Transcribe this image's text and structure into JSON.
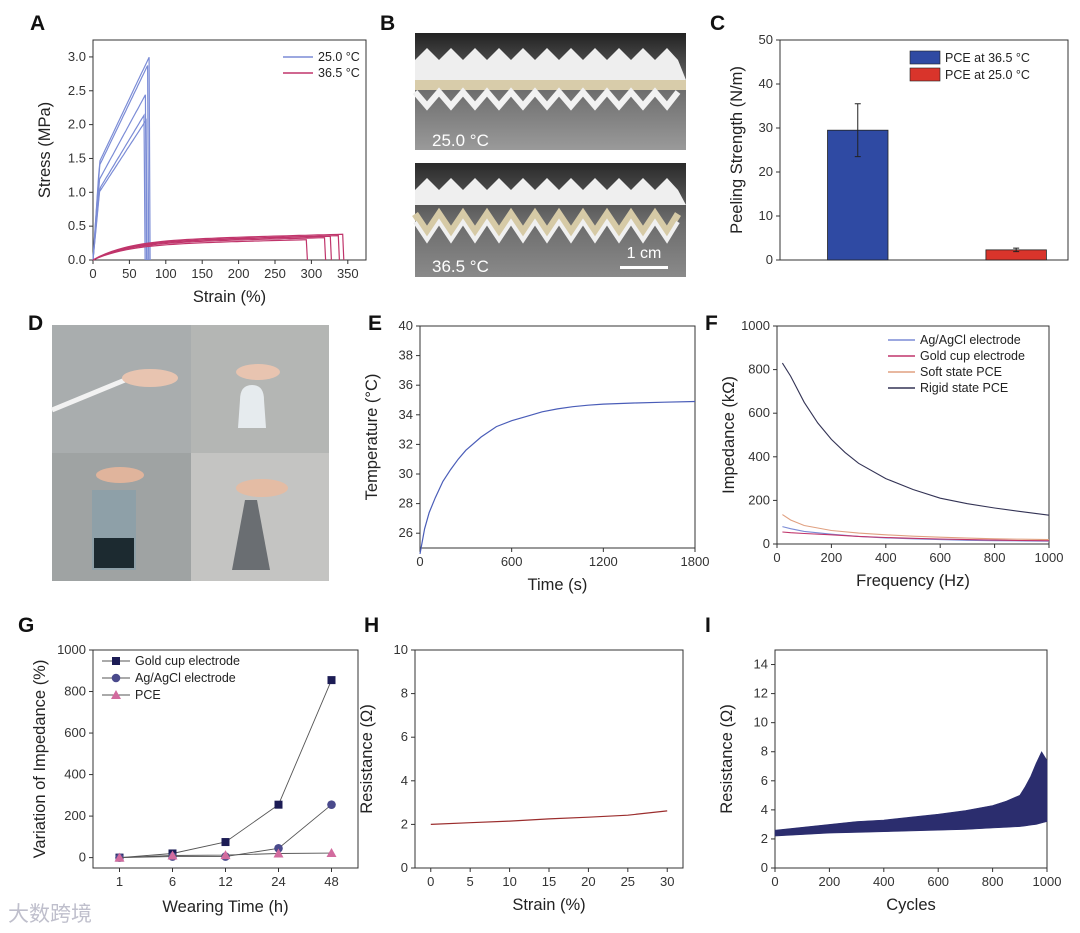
{
  "panels": {
    "A": {
      "letter": "A"
    },
    "B": {
      "letter": "B"
    },
    "C": {
      "letter": "C"
    },
    "D": {
      "letter": "D"
    },
    "E": {
      "letter": "E"
    },
    "F": {
      "letter": "F"
    },
    "G": {
      "letter": "G"
    },
    "H": {
      "letter": "H"
    },
    "I": {
      "letter": "I"
    }
  },
  "photo_B": {
    "top_label": "25.0 °C",
    "bottom_label": "36.5 °C",
    "scale_label": "1 cm"
  },
  "watermark": "大数跨境",
  "colors": {
    "blue": "#7b8cd6",
    "red": "#c0356b",
    "navy": "#2b2d6e",
    "pce_blue": "#2f4aa3",
    "pce_red": "#d9342b"
  },
  "chart_data": [
    {
      "id": "A",
      "type": "line",
      "xlabel": "Strain (%)",
      "ylabel": "Stress (MPa)",
      "xlim": [
        0,
        375
      ],
      "ylim": [
        0,
        3.25
      ],
      "xticks": [
        0,
        50,
        100,
        150,
        200,
        250,
        300,
        350
      ],
      "yticks": [
        0.0,
        0.5,
        1.0,
        1.5,
        2.0,
        2.5,
        3.0
      ],
      "ytick_labels": [
        "0.0",
        "0.5",
        "1.0",
        "1.5",
        "2.0",
        "2.5",
        "3.0"
      ],
      "series": [
        {
          "name": "25.0 °C",
          "color": "#7b8cd6",
          "curves": [
            {
              "peak": 2.97,
              "break": 77
            },
            {
              "peak": 2.85,
              "break": 75
            },
            {
              "peak": 2.42,
              "break": 72
            },
            {
              "peak": 2.12,
              "break": 70
            },
            {
              "peak": 2.05,
              "break": 73
            }
          ]
        },
        {
          "name": "36.5 °C",
          "color": "#c0356b",
          "curves": [
            {
              "peak": 0.3,
              "break": 293
            },
            {
              "peak": 0.33,
              "break": 318
            },
            {
              "peak": 0.35,
              "break": 326
            },
            {
              "peak": 0.38,
              "break": 343
            },
            {
              "peak": 0.36,
              "break": 337
            }
          ]
        }
      ]
    },
    {
      "id": "C",
      "type": "bar",
      "ylabel": "Peeling Strength (N/m)",
      "ylim": [
        0,
        50
      ],
      "yticks": [
        0,
        10,
        20,
        30,
        40,
        50
      ],
      "series": [
        {
          "name": "PCE at 36.5 °C",
          "value": 29.5,
          "error": 6.0,
          "color": "#2f4aa3"
        },
        {
          "name": "PCE at 25.0 °C",
          "value": 2.3,
          "error": 0.4,
          "color": "#d9342b"
        }
      ]
    },
    {
      "id": "E",
      "type": "line",
      "xlabel": "Time (s)",
      "ylabel": "Temperature (°C)",
      "xlim": [
        0,
        1800
      ],
      "ylim": [
        25,
        40
      ],
      "xticks": [
        0,
        600,
        1200,
        1800
      ],
      "yticks": [
        26,
        28,
        30,
        32,
        34,
        36,
        38,
        40
      ],
      "series": [
        {
          "name": "temperature",
          "color": "#4a5db8",
          "x": [
            0,
            30,
            60,
            100,
            150,
            200,
            250,
            300,
            400,
            500,
            600,
            700,
            800,
            900,
            1000,
            1100,
            1200,
            1400,
            1600,
            1800
          ],
          "y": [
            24.6,
            26.3,
            27.4,
            28.4,
            29.5,
            30.3,
            31.0,
            31.6,
            32.5,
            33.2,
            33.6,
            33.9,
            34.2,
            34.4,
            34.55,
            34.65,
            34.72,
            34.8,
            34.85,
            34.9
          ]
        }
      ]
    },
    {
      "id": "F",
      "type": "line",
      "xlabel": "Frequency (Hz)",
      "ylabel": "Impedance (kΩ)",
      "xlim": [
        0,
        1000
      ],
      "ylim": [
        0,
        1000
      ],
      "xticks": [
        0,
        200,
        400,
        600,
        800,
        1000
      ],
      "yticks": [
        0,
        200,
        400,
        600,
        800,
        1000
      ],
      "series": [
        {
          "name": "Ag/AgCl electrode",
          "color": "#7b8cd6",
          "x": [
            20,
            50,
            100,
            200,
            300,
            400,
            500,
            600,
            700,
            800,
            900,
            1000
          ],
          "y": [
            80,
            70,
            58,
            45,
            35,
            28,
            24,
            20,
            17,
            15,
            14,
            13
          ]
        },
        {
          "name": "Gold cup electrode",
          "color": "#c0356b",
          "x": [
            20,
            50,
            100,
            200,
            300,
            400,
            500,
            600,
            700,
            800,
            900,
            1000
          ],
          "y": [
            55,
            52,
            48,
            42,
            35,
            30,
            26,
            23,
            20,
            18,
            16,
            15
          ]
        },
        {
          "name": "Soft state PCE",
          "color": "#e0a080",
          "x": [
            20,
            50,
            100,
            200,
            300,
            400,
            500,
            600,
            700,
            800,
            900,
            1000
          ],
          "y": [
            135,
            110,
            85,
            62,
            50,
            42,
            36,
            31,
            27,
            24,
            22,
            20
          ]
        },
        {
          "name": "Rigid state PCE",
          "color": "#333355",
          "x": [
            20,
            50,
            100,
            150,
            200,
            250,
            300,
            400,
            500,
            600,
            700,
            800,
            900,
            1000
          ],
          "y": [
            830,
            770,
            650,
            555,
            480,
            420,
            370,
            300,
            250,
            210,
            185,
            165,
            148,
            132
          ]
        }
      ]
    },
    {
      "id": "G",
      "type": "line",
      "xlabel": "Wearing Time (h)",
      "ylabel": "Variation of Impedance (%)",
      "categories": [
        "1",
        "6",
        "12",
        "24",
        "48"
      ],
      "ylim": [
        -50,
        1000
      ],
      "yticks": [
        0,
        200,
        400,
        600,
        800,
        1000
      ],
      "series": [
        {
          "name": "Gold cup electrode",
          "marker": "square",
          "color": "#1c1c55",
          "values": [
            0,
            20,
            75,
            255,
            855
          ]
        },
        {
          "name": "Ag/AgCl electrode",
          "marker": "circle",
          "color": "#4a4a8c",
          "values": [
            0,
            5,
            5,
            45,
            255
          ]
        },
        {
          "name": "PCE",
          "marker": "triangle",
          "color": "#d26b9e",
          "values": [
            0,
            10,
            12,
            20,
            22
          ]
        }
      ]
    },
    {
      "id": "H",
      "type": "line",
      "xlabel": "Strain (%)",
      "ylabel": "Resistance (Ω)",
      "xlim": [
        -2,
        32
      ],
      "ylim": [
        0,
        10
      ],
      "xticks": [
        0,
        5,
        10,
        15,
        20,
        25,
        30
      ],
      "yticks": [
        0,
        2,
        4,
        6,
        8,
        10
      ],
      "series": [
        {
          "name": "resistance",
          "color": "#9b2d2d",
          "x": [
            0,
            5,
            10,
            15,
            20,
            25,
            30
          ],
          "y": [
            2.0,
            2.08,
            2.15,
            2.25,
            2.33,
            2.42,
            2.62
          ]
        }
      ]
    },
    {
      "id": "I",
      "type": "area",
      "xlabel": "Cycles",
      "ylabel": "Resistance (Ω)",
      "xlim": [
        0,
        1000
      ],
      "ylim": [
        0,
        15
      ],
      "xticks": [
        0,
        200,
        400,
        600,
        800,
        1000
      ],
      "yticks": [
        0,
        2,
        4,
        6,
        8,
        10,
        12,
        14
      ],
      "series": [
        {
          "name": "resistance",
          "color": "#2b2d6e",
          "x": [
            0,
            100,
            200,
            300,
            400,
            500,
            600,
            700,
            800,
            850,
            900,
            920,
            940,
            960,
            980,
            1000
          ],
          "lower": [
            2.2,
            2.3,
            2.4,
            2.45,
            2.5,
            2.55,
            2.6,
            2.65,
            2.75,
            2.8,
            2.85,
            2.9,
            2.95,
            3.0,
            3.1,
            3.2
          ],
          "upper": [
            2.6,
            2.8,
            3.0,
            3.2,
            3.3,
            3.5,
            3.7,
            3.95,
            4.3,
            4.6,
            5.0,
            5.6,
            6.3,
            7.2,
            8.0,
            7.4
          ]
        }
      ]
    }
  ]
}
